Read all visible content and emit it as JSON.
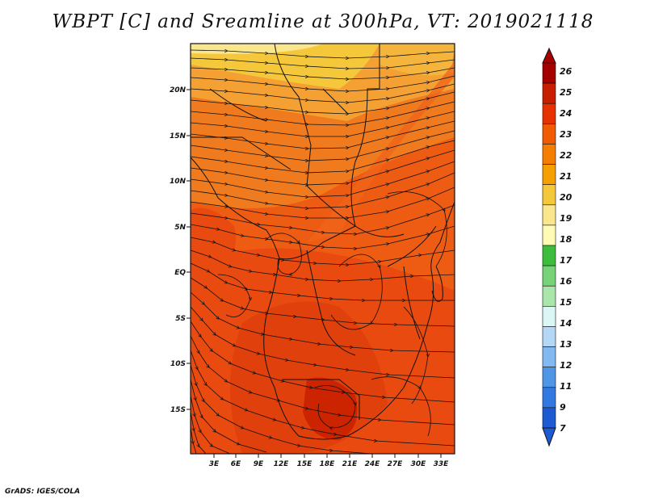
{
  "title": "WBPT [C] and Sreamline at 300hPa, VT: 2019021118",
  "credit": "GrADS: IGES/COLA",
  "map": {
    "lon_labels": [
      "3E",
      "6E",
      "9E",
      "12E",
      "15E",
      "18E",
      "21E",
      "24E",
      "27E",
      "30E",
      "33E"
    ],
    "lat_labels": [
      "20N",
      "15N",
      "10N",
      "5N",
      "EQ",
      "5S",
      "10S",
      "15S"
    ]
  },
  "colorbar": {
    "labels": [
      "26",
      "25",
      "24",
      "23",
      "22",
      "21",
      "20",
      "19",
      "18",
      "17",
      "16",
      "15",
      "14",
      "13",
      "12",
      "11",
      "9",
      "7"
    ],
    "colors": [
      "#a50000",
      "#c81e00",
      "#e63200",
      "#f05a00",
      "#f57d00",
      "#f5a000",
      "#f5c83c",
      "#fae68c",
      "#fffab4",
      "#3cbe3c",
      "#78d278",
      "#aae6aa",
      "#dcf5f5",
      "#b4d7f5",
      "#82b9f0",
      "#5096e6",
      "#3278e1",
      "#1e5ad2"
    ]
  },
  "icons": [
    "streamline-arrow-icon",
    "colorbar-up-arrow-icon",
    "colorbar-down-arrow-icon"
  ]
}
